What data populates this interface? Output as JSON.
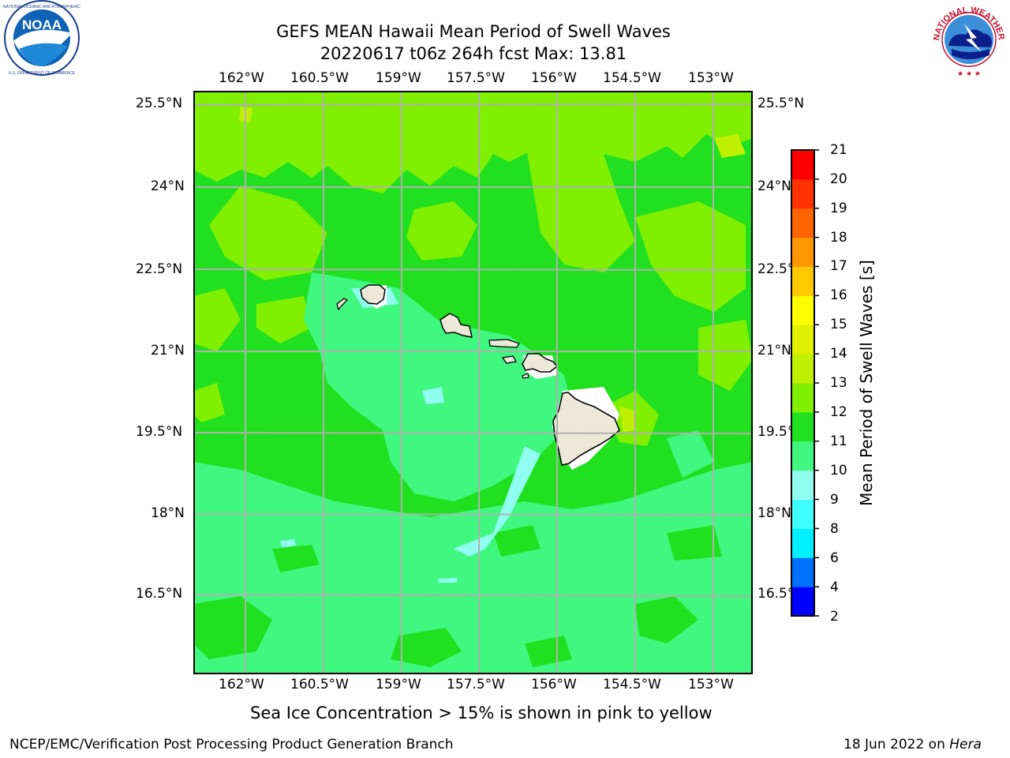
{
  "title": {
    "line1": "GEFS MEAN Hawaii Mean Period of Swell Waves",
    "line2": "20220617 t06z 264h fcst   Max: 13.81"
  },
  "logos": {
    "noaa": {
      "text": "NOAA",
      "ring_text": "NATIONAL OCEANIC AND ATMOSPHERIC ADMINISTRATION · U.S. DEPARTMENT OF COMMERCE"
    },
    "nws": {
      "ring_text": "NATIONAL WEATHER SERVICE"
    }
  },
  "map": {
    "lon_labels": [
      "162°W",
      "160.5°W",
      "159°W",
      "157.5°W",
      "156°W",
      "154.5°W",
      "153°W"
    ],
    "lat_labels": [
      "25.5°N",
      "24°N",
      "22.5°N",
      "21°N",
      "19.5°N",
      "18°N",
      "16.5°N"
    ],
    "lon_range": [
      -163.0,
      -152.5
    ],
    "lat_range": [
      15.0,
      25.7
    ],
    "grid": true,
    "land_color": "#ede9d9"
  },
  "colorbar": {
    "label": "Mean Period of Swell Waves [s]",
    "ticks": [
      "21",
      "20",
      "19",
      "18",
      "17",
      "16",
      "15",
      "14",
      "13",
      "12",
      "11",
      "10",
      "9",
      "8",
      "6",
      "4",
      "2"
    ],
    "levels": [
      2,
      4,
      6,
      8,
      9,
      10,
      11,
      12,
      13,
      14,
      15,
      16,
      17,
      18,
      19,
      20,
      21
    ],
    "colors": [
      "#0000ff",
      "#0070ff",
      "#00f0ff",
      "#40ffff",
      "#90fff0",
      "#40f880",
      "#20e020",
      "#80f000",
      "#c0f000",
      "#e0f000",
      "#ffff00",
      "#ffc800",
      "#ff9600",
      "#ff6400",
      "#ff3200",
      "#ff0000"
    ]
  },
  "note": "Sea Ice Concentration > 15% is shown in pink to yellow",
  "footer": {
    "left": "NCEP/EMC/Verification Post Processing Product Generation Branch",
    "date": "18 Jun 2022 on",
    "machine": "Hera"
  }
}
